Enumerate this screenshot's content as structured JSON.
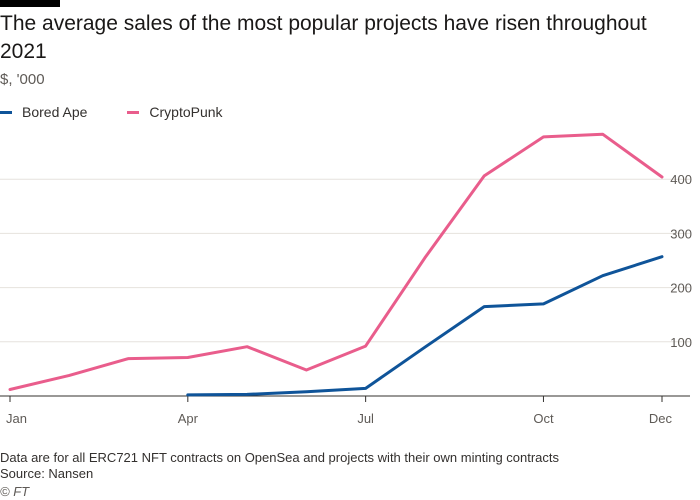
{
  "header": {
    "title": "The average sales of the most popular projects have risen throughout 2021",
    "subtitle": "$, '000"
  },
  "footer": {
    "note": "Data are for all ERC721 NFT contracts on OpenSea and projects with their own minting contracts",
    "source": "Source: Nansen",
    "copyright": "© FT"
  },
  "colors": {
    "bored_ape": "#0f5499",
    "cryptopunk": "#e95d8c",
    "grid": "#e6e2dd",
    "axis": "#33302e"
  },
  "chart_data": {
    "type": "line",
    "title": "The average sales of the most popular projects have risen throughout 2021",
    "ylabel": "$, '000",
    "xlabel": "",
    "x_ticks": [
      "Jan",
      "Apr",
      "Jul",
      "Oct",
      "Dec"
    ],
    "x_tick_months": [
      1,
      4,
      7,
      10,
      12
    ],
    "xlim": [
      1,
      12
    ],
    "y_ticks": [
      100,
      200,
      300,
      400
    ],
    "ylim": [
      0,
      500
    ],
    "grid": true,
    "legend_position": "top-left",
    "series": [
      {
        "name": "Bored Ape",
        "color": "#0f5499",
        "x": [
          4,
          5,
          6,
          7,
          8,
          9,
          10,
          11,
          12
        ],
        "y": [
          2,
          3,
          8,
          14,
          90,
          165,
          170,
          222,
          257
        ]
      },
      {
        "name": "CryptoPunk",
        "color": "#e95d8c",
        "x": [
          1,
          2,
          3,
          4,
          5,
          6,
          7,
          8,
          9,
          10,
          11,
          12
        ],
        "y": [
          12,
          38,
          69,
          71,
          91,
          48,
          92,
          255,
          406,
          478,
          483,
          404
        ]
      }
    ]
  }
}
